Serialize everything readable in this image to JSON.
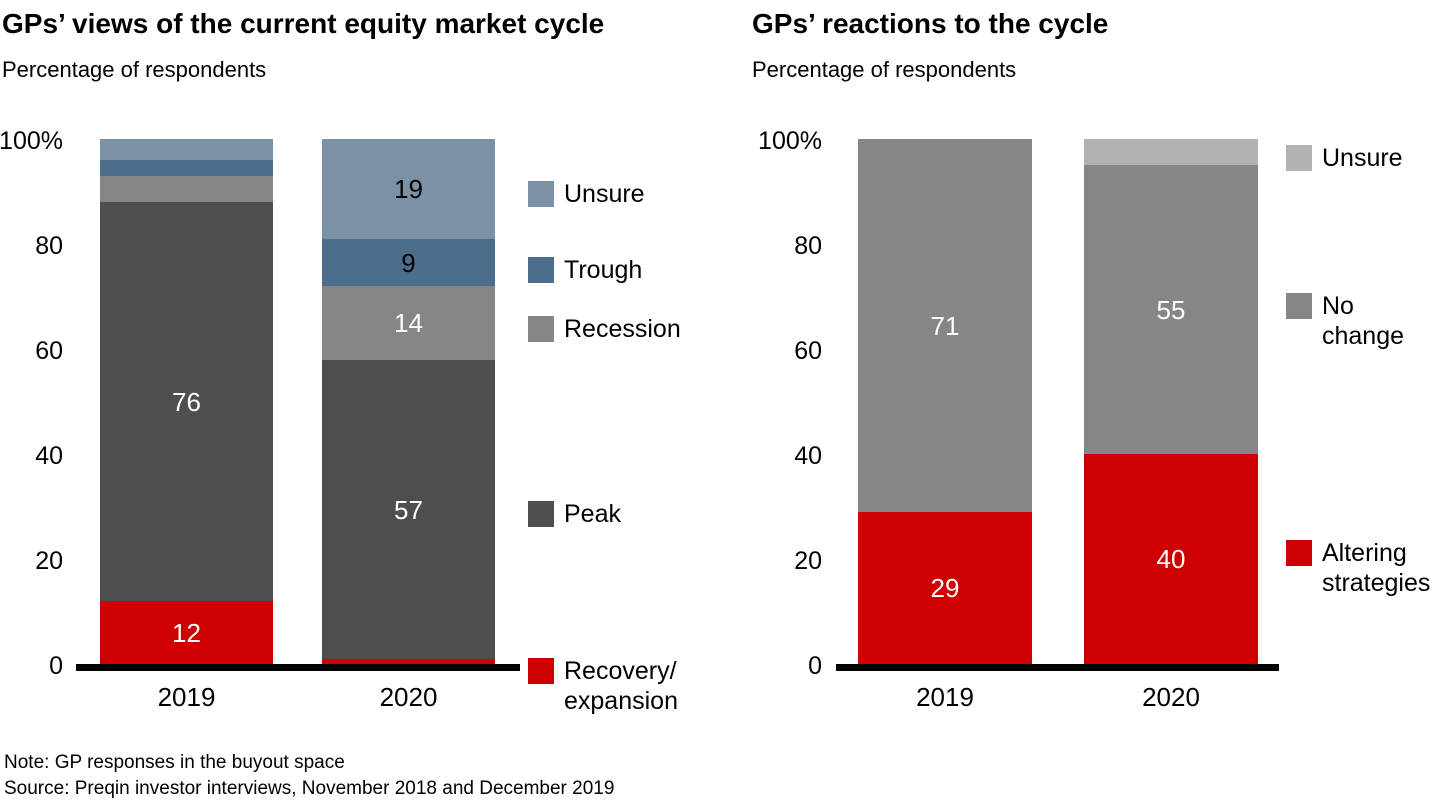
{
  "colors": {
    "red": "#CE0000",
    "darkGray": "#4D4E50",
    "midGray": "#85868A",
    "steelDark": "#4C6E8C",
    "steelLight": "#7B91A6",
    "lightGray": "#B1B2B4",
    "axis": "#000000",
    "white": "#FFFFFF",
    "black": "#000000"
  },
  "chart_data": [
    {
      "type": "bar",
      "stacked": true,
      "percent": true,
      "title": "GPs’ views of the current equity market cycle",
      "subtitle": "Percentage of respondents",
      "categories": [
        "2019",
        "2020"
      ],
      "ylim": [
        0,
        100
      ],
      "yticks": [
        0,
        20,
        40,
        60,
        80,
        100
      ],
      "ytick_labels": [
        "0",
        "20",
        "40",
        "60",
        "80",
        "100%"
      ],
      "grid": false,
      "legend_position": "right",
      "series": [
        {
          "name": "Recovery/expansion",
          "legend_lines": [
            "Recovery/",
            "expansion"
          ],
          "color_key": "red",
          "values": [
            12,
            1
          ],
          "labels": [
            "12",
            ""
          ],
          "label_colors": [
            "#FFFFFF",
            "#FFFFFF"
          ]
        },
        {
          "name": "Peak",
          "legend_lines": [
            "Peak"
          ],
          "color_key": "darkGray",
          "values": [
            76,
            57
          ],
          "labels": [
            "76",
            "57"
          ],
          "label_colors": [
            "#FFFFFF",
            "#FFFFFF"
          ]
        },
        {
          "name": "Recession",
          "legend_lines": [
            "Recession"
          ],
          "color_key": "midGray",
          "values": [
            5,
            14
          ],
          "labels": [
            "",
            "14"
          ],
          "label_colors": [
            "#FFFFFF",
            "#FFFFFF"
          ]
        },
        {
          "name": "Trough",
          "legend_lines": [
            "Trough"
          ],
          "color_key": "steelDark",
          "values": [
            3,
            9
          ],
          "labels": [
            "",
            "9"
          ],
          "label_colors": [
            "#000000",
            "#000000"
          ]
        },
        {
          "name": "Unsure",
          "legend_lines": [
            "Unsure"
          ],
          "color_key": "steelLight",
          "values": [
            4,
            19
          ],
          "labels": [
            "",
            "19"
          ],
          "label_colors": [
            "#000000",
            "#000000"
          ]
        }
      ]
    },
    {
      "type": "bar",
      "stacked": true,
      "percent": true,
      "title": "GPs’ reactions to the cycle",
      "subtitle": "Percentage of respondents",
      "categories": [
        "2019",
        "2020"
      ],
      "ylim": [
        0,
        100
      ],
      "yticks": [
        0,
        20,
        40,
        60,
        80,
        100
      ],
      "ytick_labels": [
        "0",
        "20",
        "40",
        "60",
        "80",
        "100%"
      ],
      "grid": false,
      "legend_position": "right",
      "series": [
        {
          "name": "Altering strategies",
          "legend_lines": [
            "Altering",
            "strategies"
          ],
          "color_key": "red",
          "values": [
            29,
            40
          ],
          "labels": [
            "29",
            "40"
          ],
          "label_colors": [
            "#FFFFFF",
            "#FFFFFF"
          ]
        },
        {
          "name": "No change",
          "legend_lines": [
            "No change"
          ],
          "color_key": "midGray",
          "values": [
            71,
            55
          ],
          "labels": [
            "71",
            "55"
          ],
          "label_colors": [
            "#FFFFFF",
            "#FFFFFF"
          ]
        },
        {
          "name": "Unsure",
          "legend_lines": [
            "Unsure"
          ],
          "color_key": "lightGray",
          "values": [
            0,
            5
          ],
          "labels": [
            "",
            ""
          ],
          "label_colors": [
            "#000000",
            "#000000"
          ]
        }
      ]
    }
  ],
  "footer": {
    "note": "Note: GP responses in the buyout space",
    "source": "Source: Preqin investor interviews, November 2018 and December 2019"
  }
}
